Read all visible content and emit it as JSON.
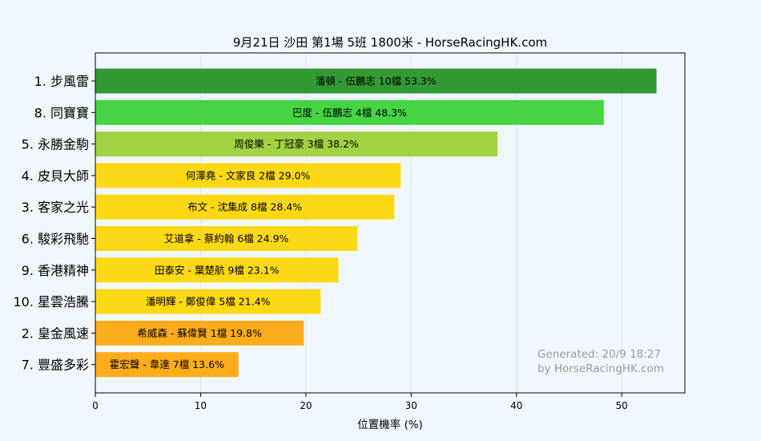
{
  "chart_data": {
    "type": "bar",
    "orientation": "horizontal",
    "title": "9月21日  沙田  第1場  5班  1800米 - HorseRacingHK.com",
    "xlabel": "位置機率 (%)",
    "ylabel": "",
    "xlim": [
      0,
      56
    ],
    "xticks": [
      "0",
      "10",
      "20",
      "30",
      "40",
      "50"
    ],
    "grid": true,
    "bars": [
      {
        "horse": "1. 步風雷",
        "label": "潘頓 - 伍鵬志 10檔  53.3%",
        "value": 53.3,
        "color": "#339933"
      },
      {
        "horse": "8. 同寶寶",
        "label": "巴度 - 伍鵬志 4檔  48.3%",
        "value": 48.3,
        "color": "#44d444"
      },
      {
        "horse": "5. 永勝金駒",
        "label": "周俊樂 - 丁冠豪 3檔  38.2%",
        "value": 38.2,
        "color": "#a2d144"
      },
      {
        "horse": "4. 皮貝大師",
        "label": "何澤堯 - 文家良 2檔  29.0%",
        "value": 29.0,
        "color": "#fdd915"
      },
      {
        "horse": "3. 客家之光",
        "label": "布文 - 沈集成 8檔  28.4%",
        "value": 28.4,
        "color": "#fdd915"
      },
      {
        "horse": "6. 駿彩飛馳",
        "label": "艾道拿 - 蔡約翰 6檔  24.9%",
        "value": 24.9,
        "color": "#fdd915"
      },
      {
        "horse": "9. 香港精神",
        "label": "田泰安 - 葉楚航 9檔  23.1%",
        "value": 23.1,
        "color": "#fdd915"
      },
      {
        "horse": "10. 星雲浩騰",
        "label": "潘明輝 - 鄭俊偉 5檔  21.4%",
        "value": 21.4,
        "color": "#fdd915"
      },
      {
        "horse": "2. 皇金風速",
        "label": "希威森 - 蘇偉賢 1檔  19.8%",
        "value": 19.8,
        "color": "#fdac1c"
      },
      {
        "horse": "7. 豐盛多彩",
        "label": "霍宏聲 - 韋達 7檔  13.6%",
        "value": 13.6,
        "color": "#fdac1c"
      }
    ]
  },
  "watermark": {
    "line1": "Generated: 20/9 18:27",
    "line2": "by HorseRacingHK.com"
  }
}
